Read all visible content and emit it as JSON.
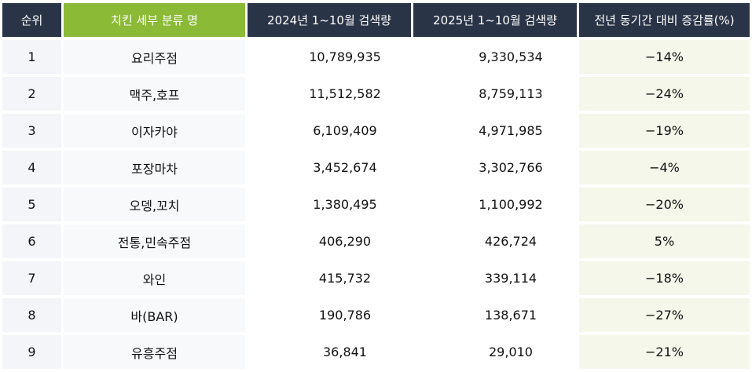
{
  "headers": [
    "순위",
    "치킨 세부 분류 명",
    "2024년 1~10월 검색량",
    "2025년 1~10월 검색량",
    "전년 동기간 대비 증감률(%)"
  ],
  "rows": [
    {
      "rank": "1",
      "name": "요리주점",
      "y2024": "10,789,935",
      "y2025": "9,330,534",
      "change": "−14%"
    },
    {
      "rank": "2",
      "name": "맥주,호프",
      "y2024": "11,512,582",
      "y2025": "8,759,113",
      "change": "−24%"
    },
    {
      "rank": "3",
      "name": "이자카야",
      "y2024": "6,109,409",
      "y2025": "4,971,985",
      "change": "−19%"
    },
    {
      "rank": "4",
      "name": "포장마차",
      "y2024": "3,452,674",
      "y2025": "3,302,766",
      "change": "−4%"
    },
    {
      "rank": "5",
      "name": "오뎅,꼬치",
      "y2024": "1,380,495",
      "y2025": "1,100,992",
      "change": "−20%"
    },
    {
      "rank": "6",
      "name": "전통,민속주점",
      "y2024": "406,290",
      "y2025": "426,724",
      "change": "5%"
    },
    {
      "rank": "7",
      "name": "와인",
      "y2024": "415,732",
      "y2025": "339,114",
      "change": "−18%"
    },
    {
      "rank": "8",
      "name": "바(BAR)",
      "y2024": "190,786",
      "y2025": "138,671",
      "change": "−27%"
    },
    {
      "rank": "9",
      "name": "유흥주점",
      "y2024": "36,841",
      "y2025": "29,010",
      "change": "−21%"
    }
  ]
}
